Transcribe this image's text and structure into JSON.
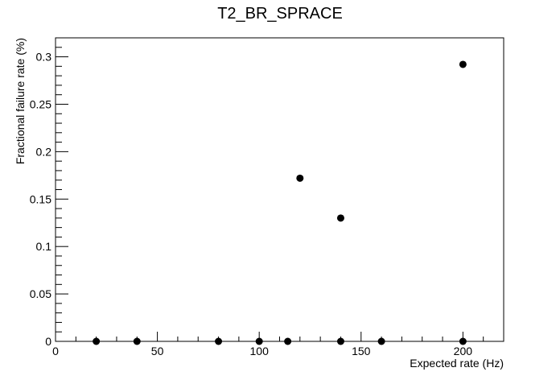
{
  "chart_data": {
    "type": "scatter",
    "title": "T2_BR_SPRACE",
    "xlabel": "Expected rate (Hz)",
    "ylabel": "Fractional failure rate (%)",
    "xlim": [
      0,
      220
    ],
    "ylim": [
      0,
      0.32
    ],
    "x_ticks": [
      0,
      50,
      100,
      150,
      200
    ],
    "x_tick_labels": [
      "0",
      "50",
      "100",
      "150",
      "200"
    ],
    "y_ticks": [
      0,
      0.05,
      0.1,
      0.15,
      0.2,
      0.25,
      0.3
    ],
    "y_tick_labels": [
      "0",
      "0.05",
      "0.1",
      "0.15",
      "0.2",
      "0.25",
      "0.3"
    ],
    "grid": false,
    "legend": "none",
    "marker_color": "#000000",
    "points": [
      {
        "x": 20,
        "y": 0
      },
      {
        "x": 40,
        "y": 0
      },
      {
        "x": 80,
        "y": 0
      },
      {
        "x": 100,
        "y": 0
      },
      {
        "x": 114,
        "y": 0
      },
      {
        "x": 120,
        "y": 0.172
      },
      {
        "x": 140,
        "y": 0.13
      },
      {
        "x": 140,
        "y": 0
      },
      {
        "x": 160,
        "y": 0
      },
      {
        "x": 200,
        "y": 0.292
      },
      {
        "x": 200,
        "y": 0
      }
    ]
  }
}
